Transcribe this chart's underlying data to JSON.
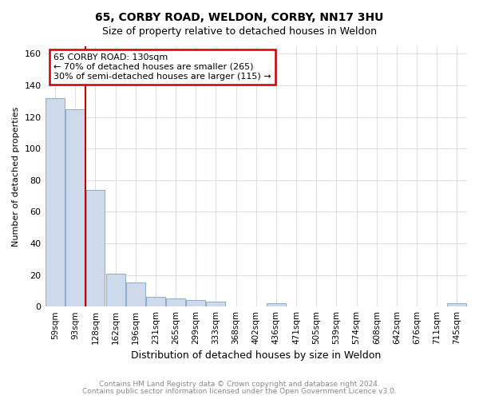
{
  "title1": "65, CORBY ROAD, WELDON, CORBY, NN17 3HU",
  "title2": "Size of property relative to detached houses in Weldon",
  "xlabel": "Distribution of detached houses by size in Weldon",
  "ylabel": "Number of detached properties",
  "footer1": "Contains HM Land Registry data © Crown copyright and database right 2024.",
  "footer2": "Contains public sector information licensed under the Open Government Licence v3.0.",
  "annotation_line1": "65 CORBY ROAD: 130sqm",
  "annotation_line2": "← 70% of detached houses are smaller (265)",
  "annotation_line3": "30% of semi-detached houses are larger (115) →",
  "bar_labels": [
    "59sqm",
    "93sqm",
    "128sqm",
    "162sqm",
    "196sqm",
    "231sqm",
    "265sqm",
    "299sqm",
    "333sqm",
    "368sqm",
    "402sqm",
    "436sqm",
    "471sqm",
    "505sqm",
    "539sqm",
    "574sqm",
    "608sqm",
    "642sqm",
    "676sqm",
    "711sqm",
    "745sqm"
  ],
  "bar_values": [
    132,
    125,
    74,
    21,
    15,
    6,
    5,
    4,
    3,
    0,
    0,
    2,
    0,
    0,
    0,
    0,
    0,
    0,
    0,
    0,
    2
  ],
  "bar_color": "#ccdaec",
  "bar_edgecolor": "#8aaac8",
  "vline_color": "#cc0000",
  "vline_x": 1.5,
  "annotation_box_color": "#cc0000",
  "ylim": [
    0,
    165
  ],
  "yticks": [
    0,
    20,
    40,
    60,
    80,
    100,
    120,
    140,
    160
  ],
  "background_color": "#ffffff",
  "grid_color": "#d0d8e0"
}
